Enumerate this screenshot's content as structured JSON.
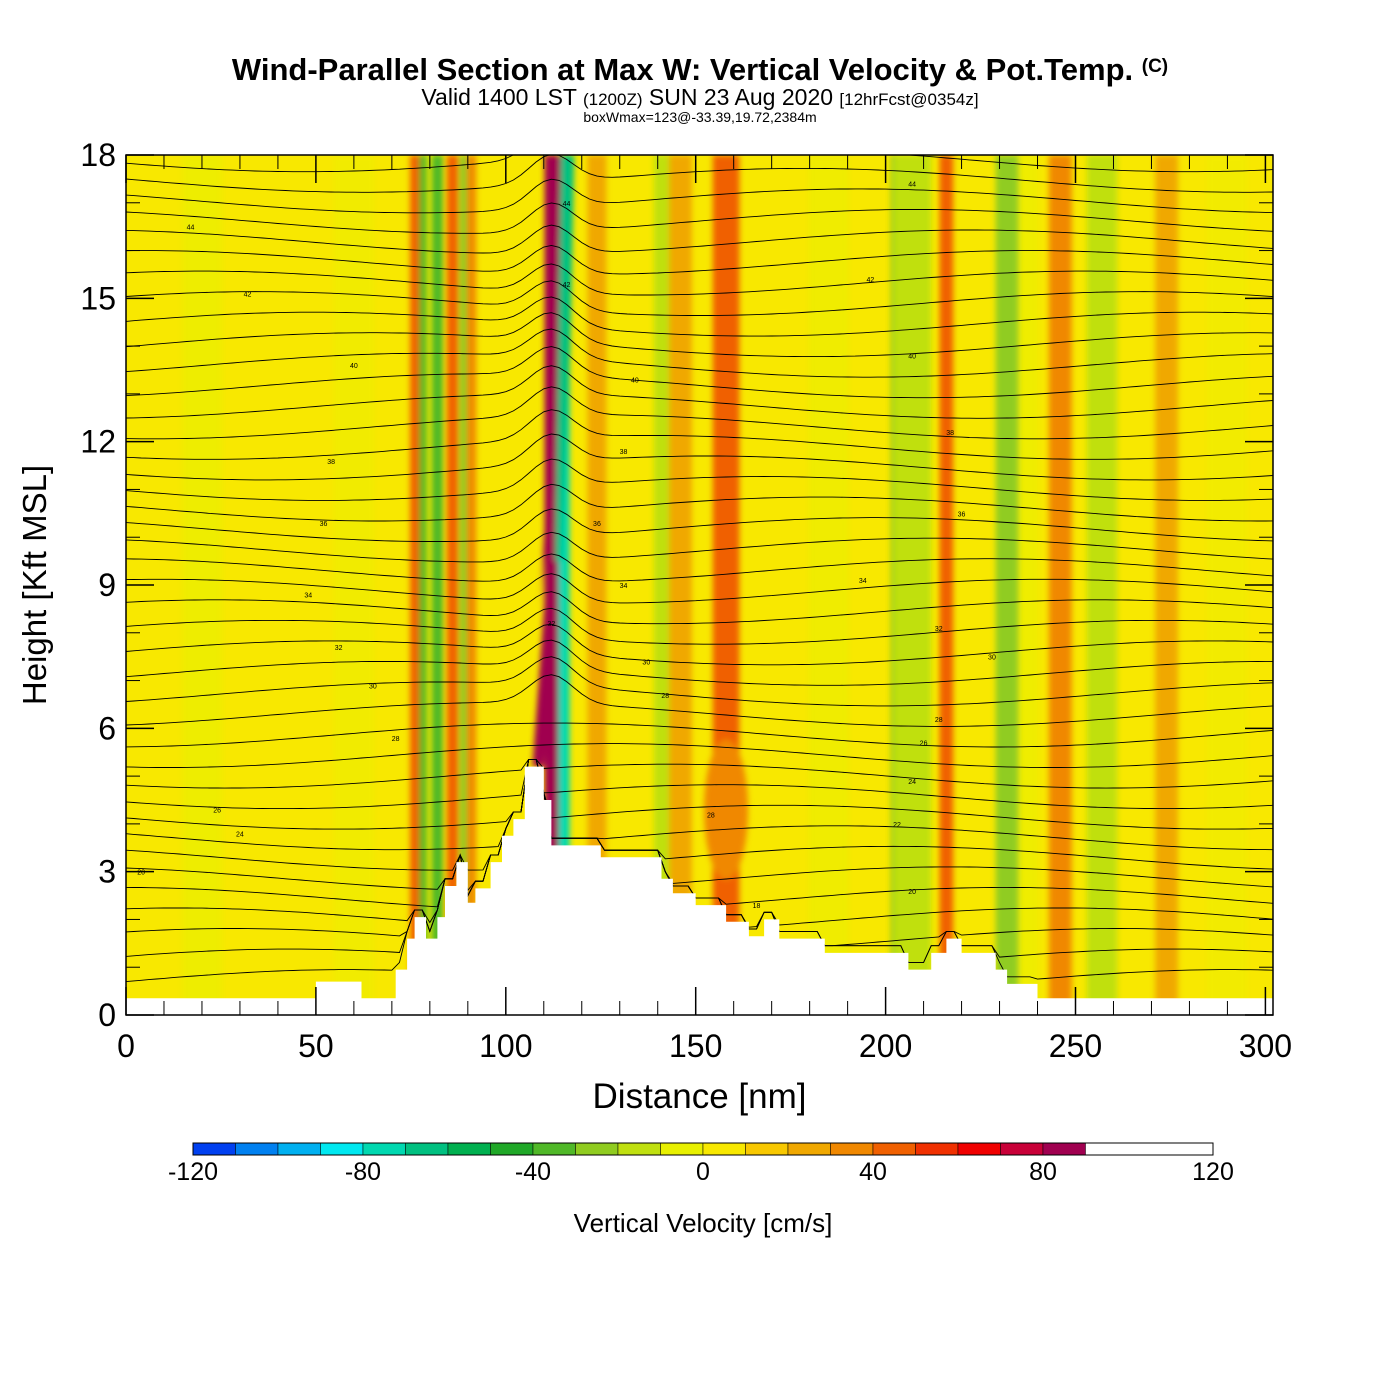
{
  "header": {
    "title": "Wind-Parallel Section at Max W: Vertical Velocity & Pot.Temp.",
    "copyright_mark": "(C)",
    "valid_prefix": "Valid 1400 LST",
    "valid_zulu": "(1200Z)",
    "valid_date": "SUN 23 Aug 2020",
    "forecast_note": "[12hrFcst@0354z]",
    "box_info": "boxWmax=123@-33.39,19.72,2384m"
  },
  "chart_data": {
    "type": "heatmap",
    "xlabel": "Distance [nm]",
    "ylabel": "Height [Kft MSL]",
    "xlim": [
      0,
      302
    ],
    "ylim": [
      0,
      18
    ],
    "xticks": [
      0,
      50,
      100,
      150,
      200,
      250,
      300
    ],
    "yticks": [
      0,
      3,
      6,
      9,
      12,
      15,
      18
    ],
    "variable": "Vertical Velocity [cm/s]",
    "contour_variable": "Potential Temperature",
    "colorbar": {
      "label": "Vertical Velocity [cm/s]",
      "min": -120,
      "max": 120,
      "step": 10,
      "tick_labels": [
        "-120",
        "-80",
        "-40",
        "0",
        "40",
        "80",
        "120"
      ],
      "colors": [
        "#0000f0",
        "#0040f0",
        "#0080f0",
        "#00b0f0",
        "#00e8f0",
        "#00d8b0",
        "#00c080",
        "#00b050",
        "#20a828",
        "#50b828",
        "#90cc20",
        "#c0e010",
        "#e8f000",
        "#f8e800",
        "#f8c800",
        "#f0a800",
        "#f08800",
        "#f06000",
        "#f03000",
        "#f00000",
        "#c80038",
        "#a00050"
      ]
    },
    "terrain_kft": [
      [
        0,
        0.35
      ],
      [
        50,
        0.35
      ],
      [
        50,
        0.7
      ],
      [
        62,
        0.7
      ],
      [
        62,
        0.35
      ],
      [
        71,
        0.35
      ],
      [
        71,
        0.95
      ],
      [
        74,
        0.95
      ],
      [
        74,
        1.6
      ],
      [
        76,
        1.6
      ],
      [
        76,
        2.05
      ],
      [
        79,
        2.05
      ],
      [
        79,
        1.6
      ],
      [
        82,
        1.6
      ],
      [
        82,
        2.05
      ],
      [
        84,
        2.05
      ],
      [
        84,
        2.7
      ],
      [
        87,
        2.7
      ],
      [
        87,
        3.2
      ],
      [
        90,
        3.2
      ],
      [
        90,
        2.35
      ],
      [
        92,
        2.35
      ],
      [
        92,
        2.65
      ],
      [
        96,
        2.65
      ],
      [
        96,
        3.2
      ],
      [
        99,
        3.2
      ],
      [
        99,
        3.75
      ],
      [
        102,
        3.75
      ],
      [
        102,
        4.1
      ],
      [
        105,
        4.1
      ],
      [
        105,
        5.2
      ],
      [
        110,
        5.2
      ],
      [
        110,
        4.5
      ],
      [
        112,
        4.5
      ],
      [
        112,
        3.55
      ],
      [
        120,
        3.55
      ],
      [
        120,
        3.55
      ],
      [
        125,
        3.55
      ],
      [
        125,
        3.3
      ],
      [
        141,
        3.3
      ],
      [
        141,
        2.85
      ],
      [
        144,
        2.85
      ],
      [
        144,
        2.55
      ],
      [
        150,
        2.55
      ],
      [
        150,
        2.3
      ],
      [
        158,
        2.3
      ],
      [
        158,
        1.95
      ],
      [
        164,
        1.95
      ],
      [
        164,
        1.65
      ],
      [
        168,
        1.65
      ],
      [
        168,
        2.0
      ],
      [
        172,
        2.0
      ],
      [
        172,
        1.6
      ],
      [
        184,
        1.6
      ],
      [
        184,
        1.3
      ],
      [
        206,
        1.3
      ],
      [
        206,
        0.95
      ],
      [
        212,
        0.95
      ],
      [
        212,
        1.3
      ],
      [
        216,
        1.3
      ],
      [
        216,
        1.6
      ],
      [
        220,
        1.6
      ],
      [
        220,
        1.3
      ],
      [
        229,
        1.3
      ],
      [
        229,
        0.95
      ],
      [
        232,
        0.95
      ],
      [
        232,
        0.65
      ],
      [
        240,
        0.65
      ],
      [
        240,
        0.35
      ],
      [
        302,
        0.35
      ]
    ],
    "updraft_bands": [
      {
        "x": 76,
        "w": 1.2,
        "value": 40
      },
      {
        "x": 86,
        "w": 1.5,
        "value": 40
      },
      {
        "x": 91,
        "w": 1.2,
        "value": 30
      },
      {
        "x": 112,
        "w": 1.8,
        "value": 110
      },
      {
        "x": 124,
        "w": 2.5,
        "value": 20
      },
      {
        "x": 146,
        "w": 3,
        "value": 20
      },
      {
        "x": 158,
        "w": 3.5,
        "value": 40
      },
      {
        "x": 216,
        "w": 1.8,
        "value": 40
      },
      {
        "x": 246,
        "w": 3,
        "value": 35
      },
      {
        "x": 274,
        "w": 3,
        "value": 25
      }
    ],
    "downdraft_bands": [
      {
        "x": 78,
        "w": 1.2,
        "value": -40
      },
      {
        "x": 82,
        "w": 1.5,
        "value": -35
      },
      {
        "x": 89,
        "w": 1.2,
        "value": -30
      },
      {
        "x": 115,
        "w": 1.8,
        "value": -75
      },
      {
        "x": 142,
        "w": 3,
        "value": -15
      },
      {
        "x": 204,
        "w": 2.5,
        "value": -35
      },
      {
        "x": 209,
        "w": 2,
        "value": -25
      },
      {
        "x": 232,
        "w": 3,
        "value": -30
      },
      {
        "x": 257,
        "w": 4,
        "value": -20
      },
      {
        "x": 207,
        "w": 5,
        "value": -20
      }
    ],
    "contour_labels": [
      {
        "x": 4,
        "y": 3.0,
        "text": "20"
      },
      {
        "x": 24,
        "y": 4.3,
        "text": "26"
      },
      {
        "x": 30,
        "y": 3.8,
        "text": "24"
      },
      {
        "x": 71,
        "y": 5.8,
        "text": "28"
      },
      {
        "x": 65,
        "y": 6.9,
        "text": "30"
      },
      {
        "x": 56,
        "y": 7.7,
        "text": "32"
      },
      {
        "x": 48,
        "y": 8.8,
        "text": "34"
      },
      {
        "x": 52,
        "y": 10.3,
        "text": "36"
      },
      {
        "x": 54,
        "y": 11.6,
        "text": "38"
      },
      {
        "x": 60,
        "y": 13.6,
        "text": "40"
      },
      {
        "x": 32,
        "y": 15.1,
        "text": "42"
      },
      {
        "x": 17,
        "y": 16.5,
        "text": "44"
      },
      {
        "x": 116,
        "y": 17.0,
        "text": "44"
      },
      {
        "x": 116,
        "y": 15.3,
        "text": "42"
      },
      {
        "x": 134,
        "y": 13.3,
        "text": "40"
      },
      {
        "x": 131,
        "y": 11.8,
        "text": "38"
      },
      {
        "x": 124,
        "y": 10.3,
        "text": "36"
      },
      {
        "x": 131,
        "y": 9.0,
        "text": "34"
      },
      {
        "x": 112,
        "y": 8.2,
        "text": "32"
      },
      {
        "x": 137,
        "y": 7.4,
        "text": "30"
      },
      {
        "x": 142,
        "y": 6.7,
        "text": "28"
      },
      {
        "x": 154,
        "y": 4.2,
        "text": "28"
      },
      {
        "x": 166,
        "y": 2.3,
        "text": "18"
      },
      {
        "x": 196,
        "y": 15.4,
        "text": "42"
      },
      {
        "x": 207,
        "y": 13.8,
        "text": "40"
      },
      {
        "x": 217,
        "y": 12.2,
        "text": "38"
      },
      {
        "x": 220,
        "y": 10.5,
        "text": "36"
      },
      {
        "x": 194,
        "y": 9.1,
        "text": "34"
      },
      {
        "x": 214,
        "y": 8.1,
        "text": "32"
      },
      {
        "x": 228,
        "y": 7.5,
        "text": "30"
      },
      {
        "x": 214,
        "y": 6.2,
        "text": "28"
      },
      {
        "x": 210,
        "y": 5.7,
        "text": "26"
      },
      {
        "x": 207,
        "y": 4.9,
        "text": "24"
      },
      {
        "x": 203,
        "y": 4.0,
        "text": "22"
      },
      {
        "x": 207,
        "y": 2.6,
        "text": "20"
      },
      {
        "x": 207,
        "y": 17.4,
        "text": "44"
      }
    ]
  }
}
